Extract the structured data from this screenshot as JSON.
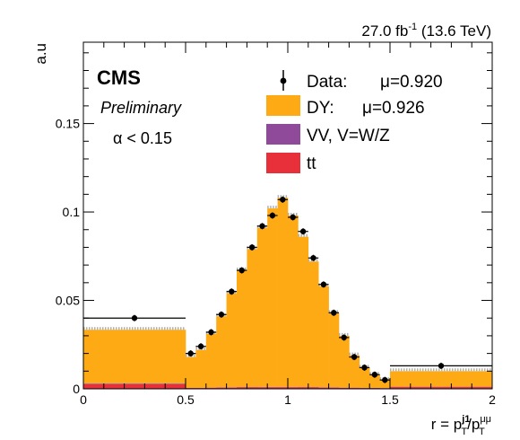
{
  "chart_data": {
    "type": "bar",
    "lumi_label": "27.0 fb",
    "lumi_exp": "-1",
    "energy_label": " (13.6 TeV)",
    "ylabel": "a.u",
    "xlabel": {
      "prefix": "r = p",
      "num_sup": "j1",
      "sub": "T",
      "slash": "/p",
      "den_sup": "μμ",
      "den_sub": "T"
    },
    "cms_label": "CMS",
    "preliminary_label": "Preliminary",
    "cut_label": "α < 0.15",
    "xlim": [
      0,
      2
    ],
    "ylim": [
      0,
      0.196
    ],
    "x_ticks": [
      {
        "v": 0,
        "label": "0"
      },
      {
        "v": 0.5,
        "label": "0.5"
      },
      {
        "v": 1,
        "label": "1"
      },
      {
        "v": 1.5,
        "label": "1.5"
      },
      {
        "v": 2,
        "label": "2"
      }
    ],
    "y_ticks": [
      {
        "v": 0,
        "label": "0"
      },
      {
        "v": 0.05,
        "label": "0.05"
      },
      {
        "v": 0.1,
        "label": "0.1"
      },
      {
        "v": 0.15,
        "label": "0.15"
      }
    ],
    "bin_edges": [
      0,
      0.5,
      0.55,
      0.6,
      0.65,
      0.7,
      0.75,
      0.8,
      0.85,
      0.9,
      0.95,
      1.0,
      1.05,
      1.1,
      1.15,
      1.2,
      1.25,
      1.3,
      1.35,
      1.4,
      1.45,
      1.5,
      2.0
    ],
    "stack": [
      {
        "name": "tt",
        "color": "#e8303a",
        "values": [
          0.0026,
          0.0005,
          0.0005,
          0.0006,
          0.0007,
          0.0007,
          0.0008,
          0.0008,
          0.0009,
          0.0009,
          0.0009,
          0.0009,
          0.0008,
          0.0008,
          0.0007,
          0.0007,
          0.0006,
          0.0006,
          0.0005,
          0.0005,
          0.0004,
          0.001
        ]
      },
      {
        "name": "VV, V=W/Z",
        "color": "#8f4a9a",
        "values": [
          0.0004,
          0.0001,
          0.0001,
          0.0001,
          0.0002,
          0.0002,
          0.0002,
          0.0002,
          0.0002,
          0.0002,
          0.0002,
          0.0002,
          0.0002,
          0.0002,
          0.0002,
          0.0002,
          0.0001,
          0.0001,
          0.0001,
          0.0001,
          0.0001,
          0.0002
        ]
      },
      {
        "name": "DY",
        "color": "#fdaa14",
        "values": [
          0.0304,
          0.0174,
          0.0214,
          0.0303,
          0.0401,
          0.0531,
          0.066,
          0.078,
          0.0899,
          0.1009,
          0.1069,
          0.0969,
          0.085,
          0.071,
          0.0571,
          0.0421,
          0.0293,
          0.0183,
          0.0114,
          0.0074,
          0.0045,
          0.0088
        ]
      }
    ],
    "data": {
      "name": "Data",
      "x": [
        0.25,
        0.525,
        0.575,
        0.625,
        0.675,
        0.725,
        0.775,
        0.825,
        0.875,
        0.925,
        0.975,
        1.025,
        1.075,
        1.125,
        1.175,
        1.225,
        1.275,
        1.325,
        1.375,
        1.425,
        1.475,
        1.75
      ],
      "y": [
        0.04,
        0.02,
        0.024,
        0.032,
        0.042,
        0.055,
        0.067,
        0.08,
        0.092,
        0.098,
        0.107,
        0.097,
        0.089,
        0.074,
        0.059,
        0.043,
        0.029,
        0.018,
        0.012,
        0.008,
        0.005,
        0.013
      ],
      "xerr": [
        0.25,
        0.025,
        0.025,
        0.025,
        0.025,
        0.025,
        0.025,
        0.025,
        0.025,
        0.025,
        0.025,
        0.025,
        0.025,
        0.025,
        0.025,
        0.025,
        0.025,
        0.025,
        0.025,
        0.025,
        0.025,
        0.25
      ]
    },
    "legend": [
      {
        "kind": "marker",
        "label": "Data:",
        "mu": "μ=0.920"
      },
      {
        "kind": "fill",
        "color": "#fdaa14",
        "label": "DY:",
        "mu": "μ=0.926"
      },
      {
        "kind": "fill",
        "color": "#8f4a9a",
        "label": "VV, V=W/Z",
        "mu": ""
      },
      {
        "kind": "fill",
        "color": "#e8303a",
        "label": "tt",
        "mu": ""
      }
    ],
    "legend_position": "top-right",
    "grid": false
  }
}
